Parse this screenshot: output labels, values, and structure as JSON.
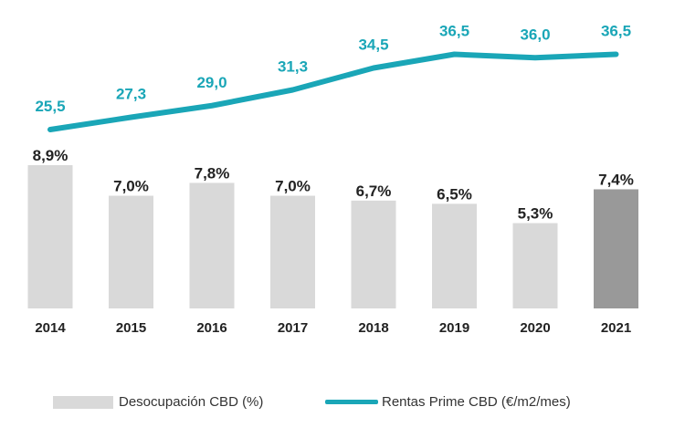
{
  "chart_data": {
    "type": "bar+line",
    "categories": [
      "2014",
      "2015",
      "2016",
      "2017",
      "2018",
      "2019",
      "2020",
      "2021"
    ],
    "series": [
      {
        "name": "Desocupación CBD (%)",
        "type": "bar",
        "values": [
          8.9,
          7.0,
          7.8,
          7.0,
          6.7,
          6.5,
          5.3,
          7.4
        ],
        "labels": [
          "8,9%",
          "7,0%",
          "7,8%",
          "7,0%",
          "6,7%",
          "6,5%",
          "5,3%",
          "7,4%"
        ],
        "color": "#d9d9d9",
        "highlight_color": "#999999",
        "highlight_index": 7
      },
      {
        "name": "Rentas Prime CBD (€/m2/mes)",
        "type": "line",
        "values": [
          25.5,
          27.3,
          29.0,
          31.3,
          34.5,
          36.5,
          36.0,
          36.5
        ],
        "labels": [
          "25,5",
          "27,3",
          "29,0",
          "31,3",
          "34,5",
          "36,5",
          "36,0",
          "36,5"
        ],
        "color": "#1aa6b7"
      }
    ],
    "legend": [
      "Desocupación CBD (%)",
      "Rentas Prime CBD (€/m2/mes)"
    ],
    "legend_position": "bottom"
  }
}
